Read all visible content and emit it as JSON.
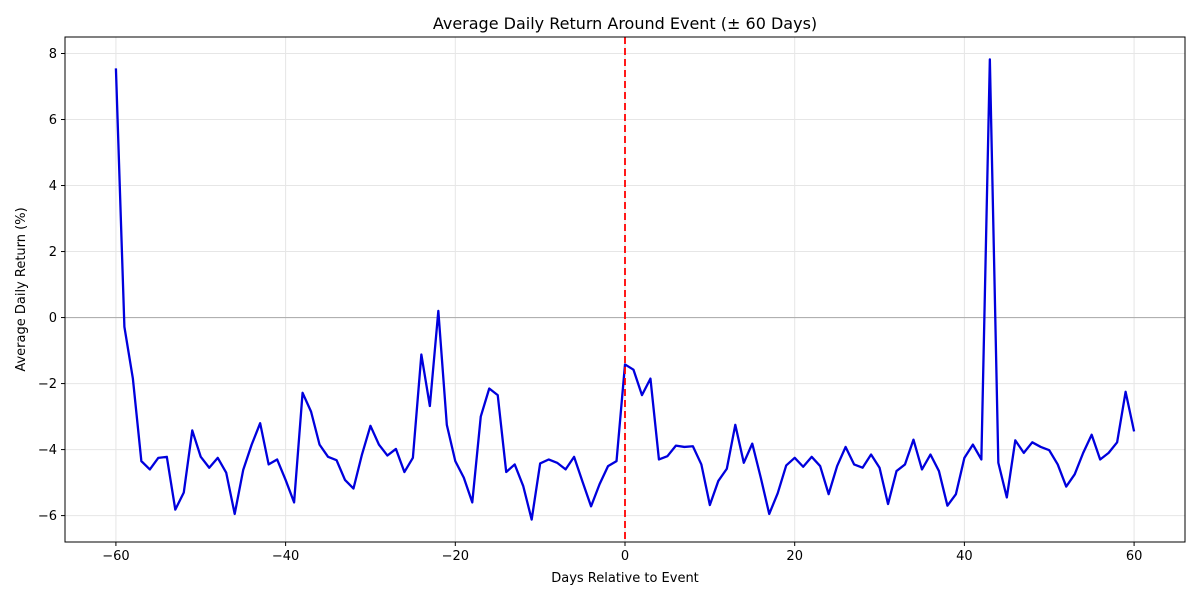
{
  "chart_data": {
    "type": "line",
    "title": "Average Daily Return Around Event (± 60 Days)",
    "xlabel": "Days Relative to Event",
    "ylabel": "Average Daily Return (%)",
    "xlim": [
      -66,
      66
    ],
    "ylim": [
      -6.8,
      8.5
    ],
    "xticks": [
      -60,
      -40,
      -20,
      0,
      20,
      40,
      60
    ],
    "yticks": [
      -6,
      -4,
      -2,
      0,
      2,
      4,
      6,
      8
    ],
    "grid": true,
    "legend": "none",
    "reference_lines": {
      "horizontal_y": 0,
      "horizontal_color": "#b0b0b0",
      "vertical_x": 0,
      "vertical_color": "#ff0000",
      "vertical_style": "dashed"
    },
    "series": [
      {
        "color": "#0000dd",
        "x": [
          -60,
          -59,
          -58,
          -57,
          -56,
          -55,
          -54,
          -53,
          -52,
          -51,
          -50,
          -49,
          -48,
          -47,
          -46,
          -45,
          -44,
          -43,
          -42,
          -41,
          -40,
          -39,
          -38,
          -37,
          -36,
          -35,
          -34,
          -33,
          -32,
          -31,
          -30,
          -29,
          -28,
          -27,
          -26,
          -25,
          -24,
          -23,
          -22,
          -21,
          -20,
          -19,
          -18,
          -17,
          -16,
          -15,
          -14,
          -13,
          -12,
          -11,
          -10,
          -9,
          -8,
          -7,
          -6,
          -5,
          -4,
          -3,
          -2,
          -1,
          0,
          1,
          2,
          3,
          4,
          5,
          6,
          7,
          8,
          9,
          10,
          11,
          12,
          13,
          14,
          15,
          16,
          17,
          18,
          19,
          20,
          21,
          22,
          23,
          24,
          25,
          26,
          27,
          28,
          29,
          30,
          31,
          32,
          33,
          34,
          35,
          36,
          37,
          38,
          39,
          40,
          41,
          42,
          43,
          44,
          45,
          46,
          47,
          48,
          49,
          50,
          51,
          52,
          53,
          54,
          55,
          56,
          57,
          58,
          59,
          60
        ],
        "values": [
          7.55,
          -0.28,
          -1.85,
          -4.35,
          -4.6,
          -4.25,
          -4.22,
          -5.82,
          -5.3,
          -3.42,
          -4.22,
          -4.55,
          -4.25,
          -4.7,
          -5.95,
          -4.62,
          -3.85,
          -3.2,
          -4.45,
          -4.3,
          -4.92,
          -5.6,
          -2.28,
          -2.85,
          -3.85,
          -4.22,
          -4.32,
          -4.92,
          -5.18,
          -4.15,
          -3.28,
          -3.85,
          -4.18,
          -3.98,
          -4.68,
          -4.25,
          -1.12,
          -2.68,
          0.2,
          -3.25,
          -4.35,
          -4.85,
          -5.6,
          -3.0,
          -2.15,
          -2.35,
          -4.68,
          -4.45,
          -5.1,
          -6.12,
          -4.42,
          -4.3,
          -4.4,
          -4.6,
          -4.22,
          -4.98,
          -5.72,
          -5.05,
          -4.5,
          -4.35,
          -1.42,
          -1.58,
          -2.35,
          -1.85,
          -4.3,
          -4.2,
          -3.88,
          -3.92,
          -3.9,
          -4.45,
          -5.68,
          -4.95,
          -4.58,
          -3.25,
          -4.4,
          -3.82,
          -4.85,
          -5.95,
          -5.32,
          -4.48,
          -4.25,
          -4.52,
          -4.22,
          -4.5,
          -5.35,
          -4.5,
          -3.92,
          -4.45,
          -4.55,
          -4.15,
          -4.55,
          -5.65,
          -4.65,
          -4.45,
          -3.7,
          -4.6,
          -4.15,
          -4.65,
          -5.7,
          -5.35,
          -4.25,
          -3.85,
          -4.3,
          7.82,
          -4.4,
          -5.45,
          -3.72,
          -4.1,
          -3.78,
          -3.92,
          -4.02,
          -4.45,
          -5.12,
          -4.75,
          -4.1,
          -3.55,
          -4.3,
          -4.1,
          -3.78,
          -2.25,
          -3.45
        ]
      }
    ]
  }
}
